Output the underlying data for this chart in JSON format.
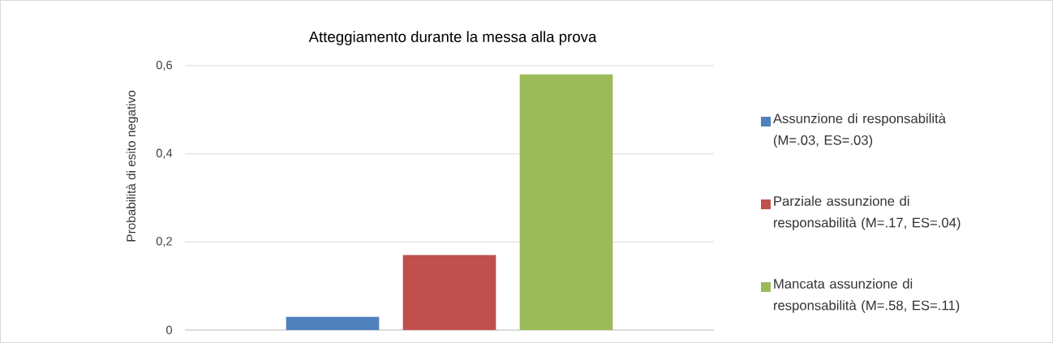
{
  "chart_data": {
    "type": "bar",
    "title": "Atteggiamento durante la messa alla prova",
    "ylabel": "Probabilità di esito negativo",
    "categories": [
      null
    ],
    "series": [
      {
        "name": "Assunzione di responsabilità (M=.03, ES=.03)",
        "color": "#4f81bd",
        "values": [
          0.03
        ]
      },
      {
        "name": "Parziale assunzione di responsabilità (M=.17, ES=.04)",
        "color": "#c0504d",
        "values": [
          0.17
        ]
      },
      {
        "name": "Mancata assunzione di responsabilità (M=.58, ES=.11)",
        "color": "#9bbb59",
        "values": [
          0.58
        ]
      }
    ],
    "ylim": [
      0,
      0.6
    ],
    "yticks": [
      0,
      {
        "value": 0.2,
        "label": "0,2"
      },
      {
        "value": 0.4,
        "label": "0,4"
      },
      {
        "value": 0.6,
        "label": "0,6"
      }
    ],
    "grid": "y",
    "legend": "right"
  }
}
